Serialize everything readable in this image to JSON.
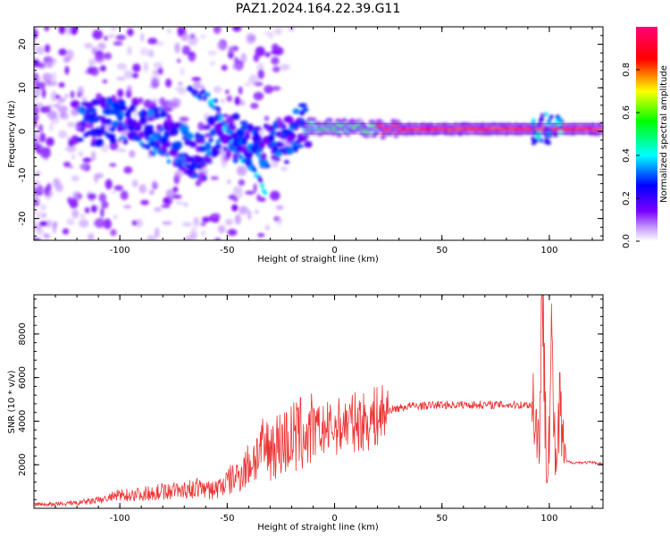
{
  "figure": {
    "title": "PAZ1.2024.164.22.39.G11"
  },
  "chart_data": [
    {
      "type": "heatmap",
      "xlabel": "Height of straight line (km)",
      "ylabel": "Frequency (Hz)",
      "xlim": [
        -140,
        125
      ],
      "ylim": [
        -25,
        24
      ],
      "x_ticks": [
        -100,
        -50,
        0,
        50,
        100
      ],
      "y_ticks": [
        -20,
        -10,
        0,
        10,
        20
      ],
      "colorbar": {
        "label": "Normalized spectral amplitude",
        "range": [
          0,
          1
        ],
        "ticks": [
          0.0,
          0.2,
          0.4,
          0.6,
          0.8
        ],
        "colormap": [
          "#ffffff",
          "#7b00ff",
          "#0000ff",
          "#00ffff",
          "#00ff00",
          "#ffff00",
          "#ff0000",
          "#ff0077"
        ]
      },
      "ridge": {
        "description_points_km_hz": [
          [
            -110,
            2
          ],
          [
            -90,
            3
          ],
          [
            -75,
            -2
          ],
          [
            -65,
            -6
          ],
          [
            -55,
            0
          ],
          [
            -45,
            -2
          ],
          [
            -35,
            -4
          ],
          [
            -25,
            -3
          ],
          [
            -15,
            1
          ],
          [
            0,
            1
          ],
          [
            20,
            0.5
          ],
          [
            60,
            0.5
          ],
          [
            100,
            0.5
          ],
          [
            125,
            0.5
          ]
        ],
        "branch_points_km_hz": [
          [
            -68,
            10
          ],
          [
            -60,
            8
          ],
          [
            -55,
            6
          ],
          [
            -50,
            0
          ],
          [
            -45,
            -5
          ],
          [
            -38,
            -9
          ],
          [
            -32,
            -14
          ]
        ]
      }
    },
    {
      "type": "line",
      "xlabel": "Height of straight line (km)",
      "ylabel": "SNR (10 * v/v)",
      "xlim": [
        -140,
        125
      ],
      "ylim": [
        0,
        9800
      ],
      "x_ticks": [
        -100,
        -50,
        0,
        50,
        100
      ],
      "y_ticks": [
        2000,
        4000,
        6000,
        8000
      ],
      "series": [
        {
          "color": "#ee3333",
          "x": [
            -140,
            -130,
            -120,
            -110,
            -100,
            -90,
            -80,
            -70,
            -60,
            -55,
            -50,
            -45,
            -40,
            -35,
            -30,
            -25,
            -20,
            -15,
            -10,
            -5,
            0,
            5,
            10,
            15,
            20,
            25,
            30,
            35,
            40,
            50,
            60,
            70,
            80,
            90,
            93,
            95,
            97,
            99,
            101,
            103,
            105,
            107,
            110,
            115,
            120,
            125
          ],
          "y": [
            150,
            150,
            200,
            300,
            500,
            550,
            650,
            700,
            800,
            900,
            1200,
            1500,
            2000,
            2600,
            2800,
            3000,
            3200,
            3400,
            3500,
            3600,
            3700,
            3900,
            3950,
            4000,
            4200,
            4500,
            4600,
            4700,
            4700,
            4750,
            4750,
            4750,
            4750,
            4750,
            4800,
            3000,
            9800,
            1500,
            7000,
            1800,
            4500,
            2200,
            2100,
            2100,
            2100,
            2050
          ]
        }
      ]
    }
  ]
}
